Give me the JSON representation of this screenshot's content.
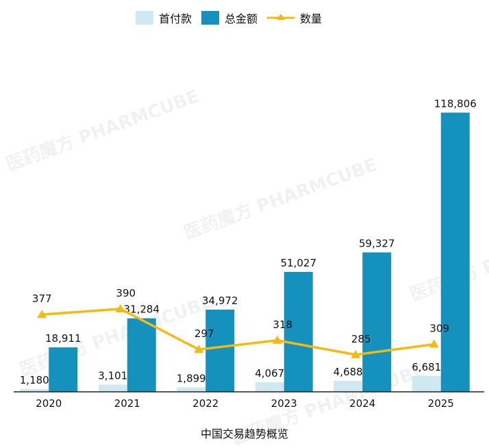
{
  "watermark": "医药魔方 PHARMCUBE",
  "chart_data": {
    "type": "bar",
    "title": "中国交易趋势概览",
    "categories": [
      "2020",
      "2021",
      "2022",
      "2023",
      "2024",
      "2025"
    ],
    "series": [
      {
        "name": "首付款",
        "type": "bar",
        "color": "#cfe8f2",
        "values": [
          1180,
          3101,
          1899,
          4067,
          4688,
          6681
        ],
        "labels": [
          "1,180",
          "3,101",
          "1,899",
          "4,067",
          "4,688",
          "6,681"
        ]
      },
      {
        "name": "总金额",
        "type": "bar",
        "color": "#1591bd",
        "values": [
          18911,
          31284,
          34972,
          51027,
          59327,
          118806
        ],
        "labels": [
          "18,911",
          "31,284",
          "34,972",
          "51,027",
          "59,327",
          "118,806"
        ]
      },
      {
        "name": "数量",
        "type": "line",
        "color": "#f5b90f",
        "values": [
          377,
          390,
          297,
          318,
          285,
          309
        ],
        "labels": [
          "377",
          "390",
          "297",
          "318",
          "285",
          "309"
        ]
      }
    ],
    "ylim_bar": [
      0,
      130000
    ],
    "ylim_line": [
      200,
      900
    ],
    "grid": false,
    "legend": "top-center"
  }
}
